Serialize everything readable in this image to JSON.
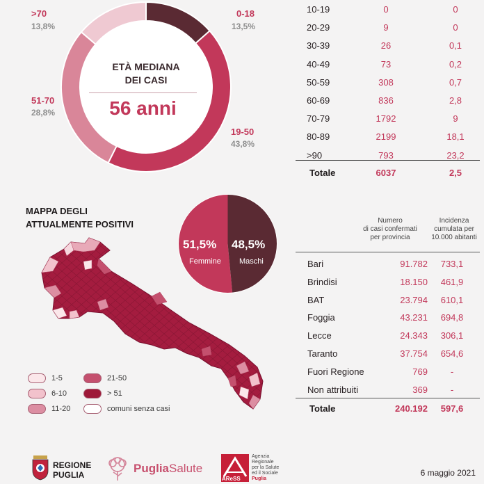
{
  "age_donut": {
    "title_line1": "ETÀ MEDIANA",
    "title_line2": "DEI CASI",
    "median": "56 anni",
    "segments": [
      {
        "label": "0-18",
        "pct": "13,5%",
        "value": 13.5,
        "color": "#5a2a33"
      },
      {
        "label": "19-50",
        "pct": "43,8%",
        "value": 43.8,
        "color": "#c2385a"
      },
      {
        "label": "51-70",
        "pct": "28,8%",
        "value": 28.8,
        "color": "#d98699"
      },
      {
        "label": ">70",
        "pct": "13,8%",
        "value": 13.8,
        "color": "#efc9d2"
      }
    ]
  },
  "age_table": {
    "rows": [
      {
        "range": "10-19",
        "deaths": "0",
        "rate": "0"
      },
      {
        "range": "20-29",
        "deaths": "9",
        "rate": "0"
      },
      {
        "range": "30-39",
        "deaths": "26",
        "rate": "0,1"
      },
      {
        "range": "40-49",
        "deaths": "73",
        "rate": "0,2"
      },
      {
        "range": "50-59",
        "deaths": "308",
        "rate": "0,7"
      },
      {
        "range": "60-69",
        "deaths": "836",
        "rate": "2,8"
      },
      {
        "range": "70-79",
        "deaths": "1792",
        "rate": "9"
      },
      {
        "range": "80-89",
        "deaths": "2199",
        "rate": "18,1"
      },
      {
        "range": ">90",
        "deaths": "793",
        "rate": "23,2"
      }
    ],
    "total_label": "Totale",
    "total_deaths": "6037",
    "total_rate": "2,5"
  },
  "map": {
    "title_line1": "MAPPA DEGLI",
    "title_line2": "ATTUALMENTE POSITIVI",
    "legend": [
      {
        "label": "1-5",
        "color": "#fbe7ea"
      },
      {
        "label": "6-10",
        "color": "#f2c2cc"
      },
      {
        "label": "11-20",
        "color": "#dc8ea2"
      },
      {
        "label": "21-50",
        "color": "#c4506e"
      },
      {
        "label": "> 51",
        "color": "#9e1838"
      },
      {
        "label": "comuni senza casi",
        "color": "#ffffff"
      }
    ]
  },
  "gender": {
    "female_pct": "51,5%",
    "female_label": "Femmine",
    "female_value": 51.5,
    "female_color": "#c2385a",
    "male_pct": "48,5%",
    "male_label": "Maschi",
    "male_value": 48.5,
    "male_color": "#5a2a33"
  },
  "province_table": {
    "head_cases": [
      "Numero",
      "di casi confermati",
      "per provincia"
    ],
    "head_incidence": [
      "Incidenza",
      "cumulata per",
      "10.000 abitanti"
    ],
    "rows": [
      {
        "name": "Bari",
        "cases": "91.782",
        "incidence": "733,1"
      },
      {
        "name": "Brindisi",
        "cases": "18.150",
        "incidence": "461,9"
      },
      {
        "name": "BAT",
        "cases": "23.794",
        "incidence": "610,1"
      },
      {
        "name": "Foggia",
        "cases": "43.231",
        "incidence": "694,8"
      },
      {
        "name": "Lecce",
        "cases": "24.343",
        "incidence": "306,1"
      },
      {
        "name": "Taranto",
        "cases": "37.754",
        "incidence": "654,6"
      },
      {
        "name": "Fuori Regione",
        "cases": "769",
        "incidence": "-"
      },
      {
        "name": "Non attribuiti",
        "cases": "369",
        "incidence": "-"
      }
    ],
    "total_label": "Totale",
    "total_cases": "240.192",
    "total_incidence": "597,6"
  },
  "footer": {
    "regione_line1": "REGIONE",
    "regione_line2": "PUGLIA",
    "puglia_salute_1": "Puglia",
    "puglia_salute_2": "Salute",
    "aress_name": "AReSS",
    "aress_line1": "Agenzia",
    "aress_line2": "Regionale",
    "aress_line3": "per la Salute",
    "aress_line4": "ed il Sociale",
    "aress_line5": "Puglia",
    "date": "6 maggio 2021"
  }
}
